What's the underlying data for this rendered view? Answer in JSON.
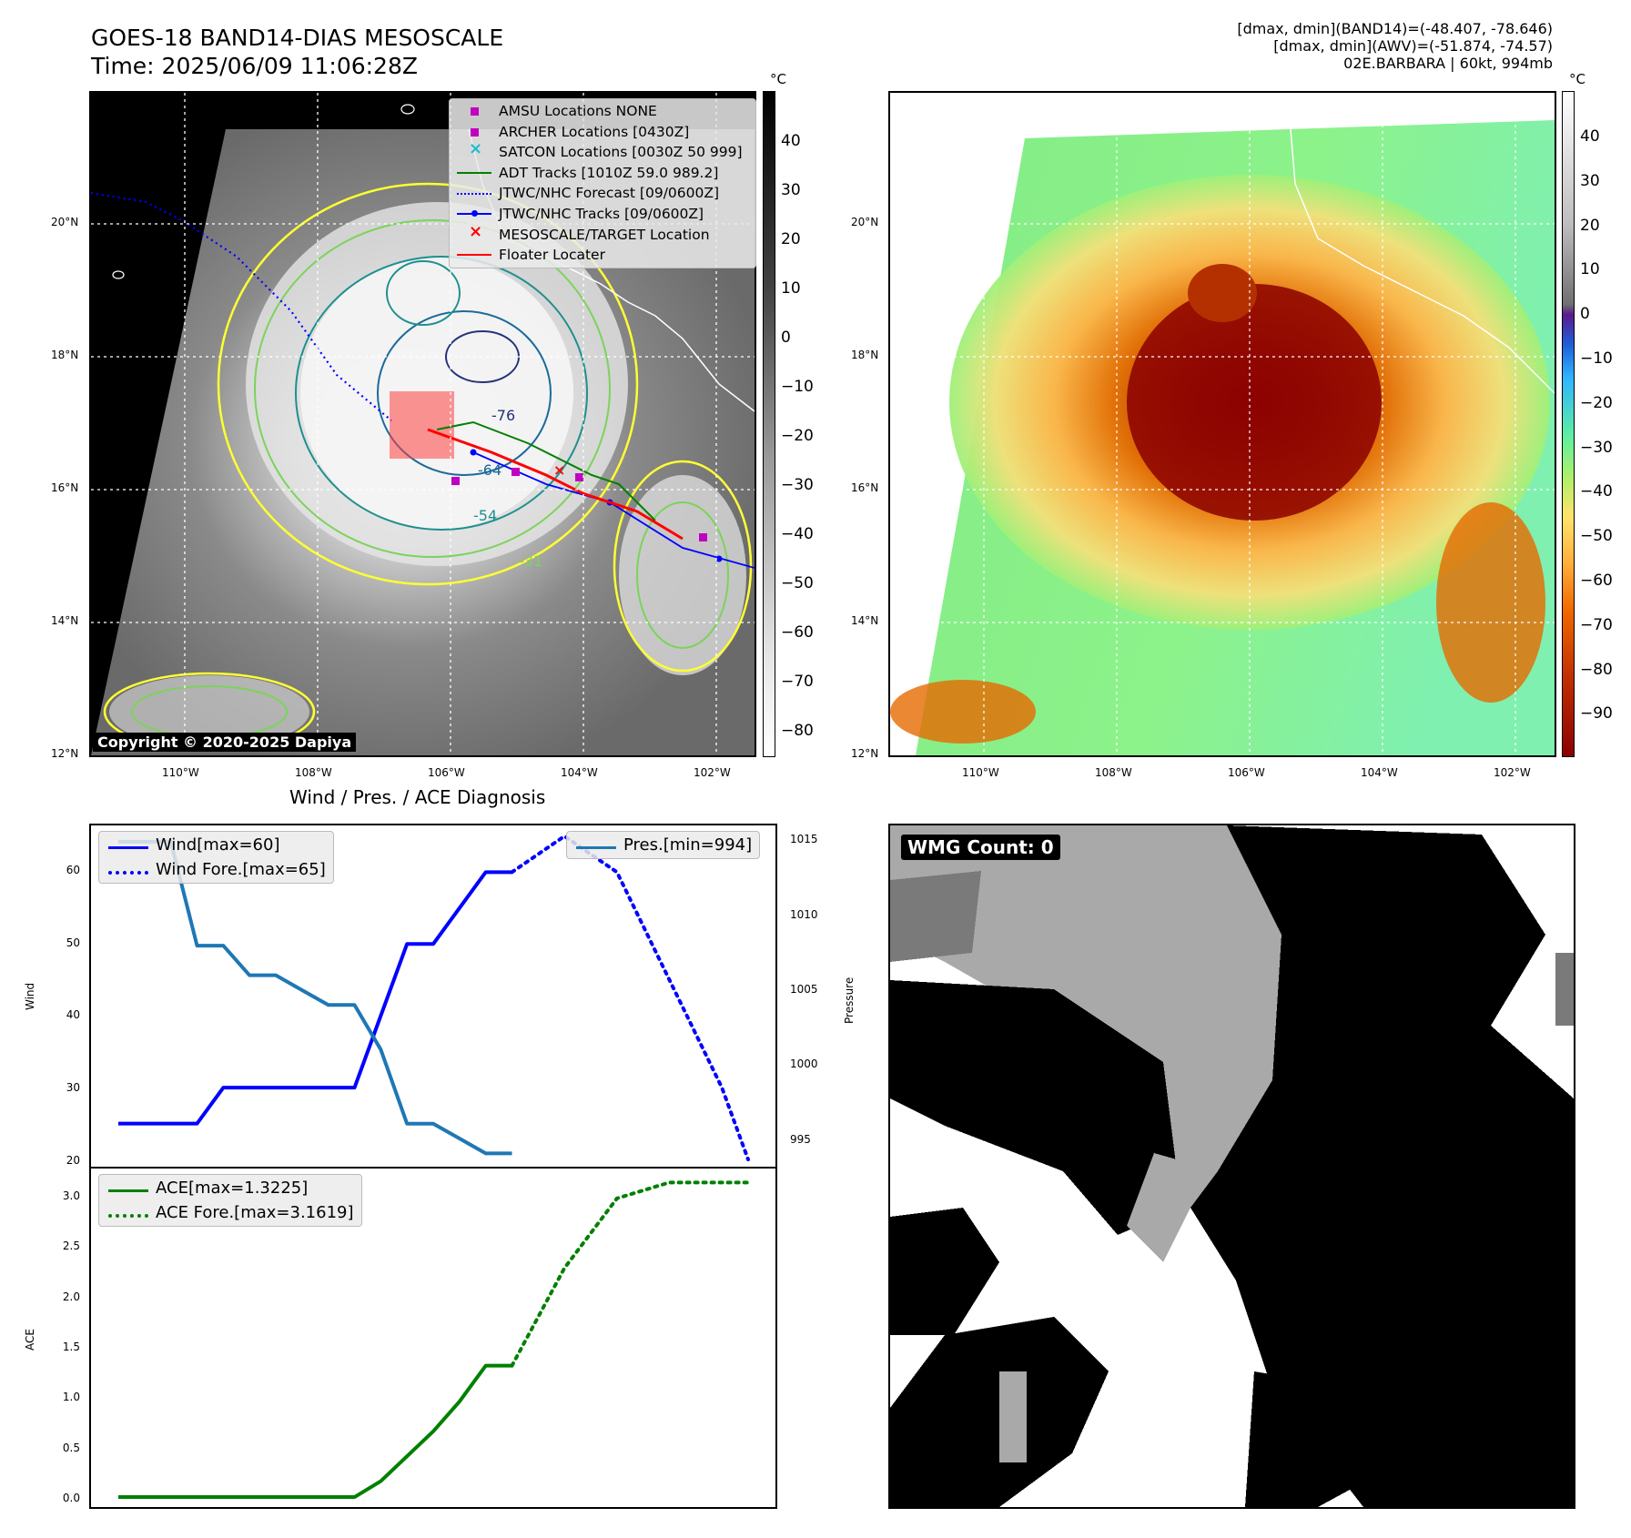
{
  "header": {
    "title_line1": "GOES-18 BAND14-DIAS MESOSCALE",
    "title_line2": "Time: 2025/06/09 11:06:28Z",
    "info_line1": "[dmax, dmin](BAND14)=(-48.407, -78.646)",
    "info_line2": "[dmax, dmin](AWV)=(-51.874, -74.57)",
    "info_line3": "02E.BARBARA | 60kt, 994mb"
  },
  "map_axes": {
    "lat_labels": [
      "20°N",
      "18°N",
      "16°N",
      "14°N",
      "12°N"
    ],
    "lon_labels": [
      "110°W",
      "108°W",
      "106°W",
      "104°W",
      "102°W"
    ]
  },
  "colorbar_left": {
    "unit": "°C",
    "ticks": [
      "40",
      "30",
      "20",
      "10",
      "0",
      "−10",
      "−20",
      "−30",
      "−40",
      "−50",
      "−60",
      "−70",
      "−80"
    ]
  },
  "colorbar_right": {
    "unit": "°C",
    "ticks": [
      "40",
      "30",
      "20",
      "10",
      "0",
      "−10",
      "−20",
      "−30",
      "−40",
      "−50",
      "−60",
      "−70",
      "−80",
      "−90"
    ]
  },
  "map_legend": {
    "items": [
      {
        "label": "AMSU Locations NONE",
        "symbol": "square",
        "color": "#c000c0"
      },
      {
        "label": "ARCHER Locations [0430Z]",
        "symbol": "square",
        "color": "#c000c0"
      },
      {
        "label": "SATCON Locations [0030Z 50 999]",
        "symbol": "x",
        "color": "#17becf"
      },
      {
        "label": "ADT Tracks [1010Z 59.0 989.2]",
        "symbol": "line",
        "color": "#008000"
      },
      {
        "label": "JTWC/NHC Forecast [09/0600Z]",
        "symbol": "dotted",
        "color": "#0000ff"
      },
      {
        "label": "JTWC/NHC Tracks [09/0600Z]",
        "symbol": "line-dot",
        "color": "#0000ff"
      },
      {
        "label": "MESOSCALE/TARGET Location",
        "symbol": "x",
        "color": "#ff0000"
      },
      {
        "label": "Floater Locater",
        "symbol": "line",
        "color": "#ff0000"
      }
    ]
  },
  "contour_labels": [
    "-31",
    "-54",
    "-64",
    "-76"
  ],
  "copyright": "Copyright © 2020-2025 Dapiya",
  "wmg": {
    "label": "WMG Count: 0"
  },
  "chart_data": [
    {
      "type": "line",
      "title": "Wind / Pres. / ACE Diagnosis",
      "x": [
        0,
        1,
        2,
        3,
        4,
        5,
        6,
        7,
        8,
        9,
        10,
        11,
        12,
        13,
        14,
        15,
        16,
        17,
        18,
        19,
        20,
        21,
        22,
        23,
        24
      ],
      "ylabel": "Wind",
      "ylim": [
        19,
        66.5
      ],
      "yticks": [
        "20",
        "30",
        "40",
        "50",
        "60"
      ],
      "y2label": "Pressure",
      "y2lim": [
        993.1,
        1016.1
      ],
      "y2ticks": [
        "995",
        "1000",
        "1005",
        "1010",
        "1015"
      ],
      "series": [
        {
          "name": "Wind[max=60]",
          "color": "#0000ff",
          "style": "solid",
          "axis": "left",
          "x": [
            0,
            1,
            2,
            3,
            4,
            5,
            6,
            7,
            8,
            9,
            10,
            11,
            12,
            13,
            14,
            15
          ],
          "values": [
            25,
            25,
            25,
            25,
            30,
            30,
            30,
            30,
            30,
            30,
            40,
            50,
            50,
            55,
            60,
            60
          ]
        },
        {
          "name": "Wind Fore.[max=65]",
          "color": "#0000ff",
          "style": "dotted",
          "axis": "left",
          "x": [
            15,
            17,
            19,
            21,
            23,
            24
          ],
          "values": [
            60,
            65,
            60,
            45,
            30,
            20
          ]
        },
        {
          "name": "Pres.[min=994]",
          "color": "#1f77b4",
          "style": "solid",
          "axis": "right",
          "x": [
            0,
            1,
            2,
            3,
            4,
            5,
            6,
            7,
            8,
            9,
            10,
            11,
            12,
            13,
            14,
            15
          ],
          "values": [
            1015,
            1015,
            1015,
            1008,
            1008,
            1006,
            1006,
            1005,
            1004,
            1004,
            1001,
            996,
            996,
            995,
            994,
            994
          ]
        }
      ]
    },
    {
      "type": "line",
      "ylabel": "ACE",
      "ylim": [
        -0.1,
        3.3
      ],
      "yticks": [
        "0.0",
        "0.5",
        "1.0",
        "1.5",
        "2.0",
        "2.5",
        "3.0"
      ],
      "series": [
        {
          "name": "ACE[max=1.3225]",
          "color": "#008000",
          "style": "solid",
          "x": [
            0,
            1,
            2,
            3,
            4,
            5,
            6,
            7,
            8,
            9,
            10,
            11,
            12,
            13,
            14,
            15
          ],
          "values": [
            0,
            0,
            0,
            0,
            0,
            0,
            0,
            0,
            0,
            0,
            0.16,
            0.41,
            0.66,
            0.96,
            1.32,
            1.32
          ]
        },
        {
          "name": "ACE Fore.[max=3.1619]",
          "color": "#008000",
          "style": "dotted",
          "x": [
            15,
            17,
            19,
            21,
            23,
            24
          ],
          "values": [
            1.32,
            2.3,
            3.0,
            3.16,
            3.16,
            3.16
          ]
        }
      ]
    }
  ]
}
